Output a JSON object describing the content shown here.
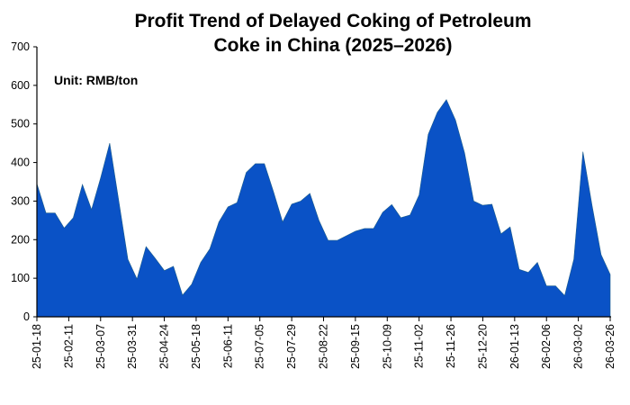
{
  "chart_data": {
    "type": "area",
    "title_lines": [
      "Profit Trend of Delayed Coking of Petroleum",
      "Coke in China (2025–2026)"
    ],
    "annotation": "Unit: RMB/ton",
    "xlabel": "",
    "ylabel": "",
    "ylim": [
      0,
      700
    ],
    "yticks": [
      0,
      100,
      200,
      300,
      400,
      500,
      600,
      700
    ],
    "xtick_labels": [
      "25-01-18",
      "25-02-11",
      "25-03-07",
      "25-03-31",
      "25-04-24",
      "25-05-18",
      "25-06-11",
      "25-07-05",
      "25-07-29",
      "25-08-22",
      "25-09-15",
      "25-10-09",
      "25-11-02",
      "25-11-26",
      "25-12-20",
      "26-01-13",
      "26-02-06",
      "26-03-02",
      "26-03-26"
    ],
    "values": [
      345,
      269,
      269,
      230,
      257,
      343,
      278,
      360,
      450,
      300,
      149,
      98,
      182,
      152,
      120,
      131,
      56,
      84,
      141,
      176,
      246,
      285,
      296,
      374,
      397,
      397,
      324,
      246,
      292,
      300,
      320,
      250,
      198,
      198,
      210,
      222,
      229,
      229,
      271,
      291,
      257,
      264,
      316,
      473,
      530,
      563,
      510,
      425,
      300,
      289,
      292,
      215,
      233,
      123,
      115,
      141,
      80,
      80,
      55,
      149,
      428,
      289,
      161,
      110
    ],
    "grid": false,
    "fill_color": "#0a52c6"
  }
}
